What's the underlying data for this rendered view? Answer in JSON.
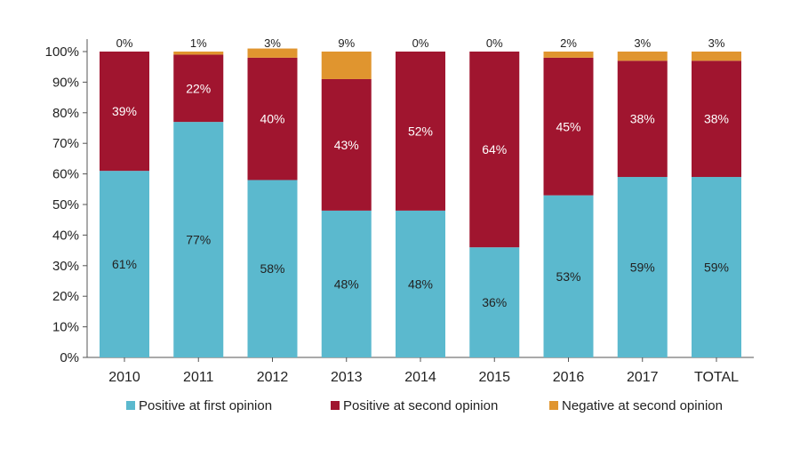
{
  "chart_data": {
    "type": "bar",
    "stacked": true,
    "title": "",
    "xlabel": "",
    "ylabel": "",
    "ylim": [
      0,
      100
    ],
    "y_ticks": [
      0,
      10,
      20,
      30,
      40,
      50,
      60,
      70,
      80,
      90,
      100
    ],
    "y_tick_labels": [
      "0%",
      "10%",
      "20%",
      "30%",
      "40%",
      "50%",
      "60%",
      "70%",
      "80%",
      "90%",
      "100%"
    ],
    "categories": [
      "2010",
      "2011",
      "2012",
      "2013",
      "2014",
      "2015",
      "2016",
      "2017",
      "TOTAL"
    ],
    "series": [
      {
        "name": "Positive at first opinion",
        "color": "#5BB9CE",
        "label_color": "#222222",
        "values": [
          61,
          77,
          58,
          48,
          48,
          36,
          53,
          59,
          59
        ],
        "labels": [
          "61%",
          "77%",
          "58%",
          "48%",
          "48%",
          "36%",
          "53%",
          "59%",
          "59%"
        ]
      },
      {
        "name": "Positive at second opinion",
        "color": "#A0152F",
        "label_color": "#ffffff",
        "values": [
          39,
          22,
          40,
          43,
          52,
          64,
          45,
          38,
          38
        ],
        "labels": [
          "39%",
          "22%",
          "40%",
          "43%",
          "52%",
          "64%",
          "45%",
          "38%",
          "38%"
        ]
      },
      {
        "name": "Negative at second opinion",
        "color": "#E0952F",
        "label_color": "#222222",
        "values": [
          0,
          1,
          3,
          9,
          0,
          0,
          2,
          3,
          3
        ],
        "labels": [
          "0%",
          "1%",
          "3%",
          "9%",
          "0%",
          "0%",
          "2%",
          "3%",
          "3%"
        ]
      }
    ],
    "grid": false,
    "legend_position": "bottom"
  }
}
